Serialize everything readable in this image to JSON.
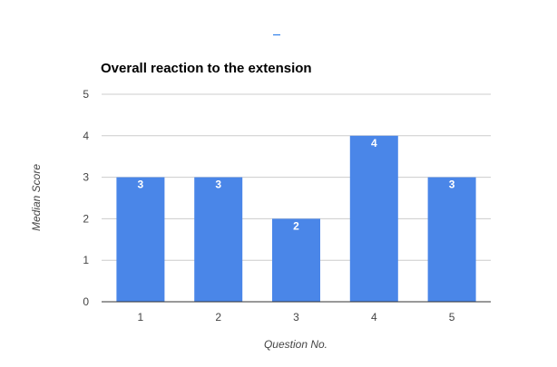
{
  "chart_data": {
    "type": "bar",
    "title": "Overall reaction to the extension",
    "xlabel": "Question No.",
    "ylabel": "Median Score",
    "categories": [
      "1",
      "2",
      "3",
      "4",
      "5"
    ],
    "values": [
      3,
      3,
      2,
      4,
      3
    ],
    "data_labels": [
      "3",
      "3",
      "2",
      "4",
      "3"
    ],
    "ylim": [
      0,
      5
    ],
    "yticks": [
      "0",
      "1",
      "2",
      "3",
      "4",
      "5"
    ],
    "grid": true,
    "legend": "none",
    "colors": {
      "bar": "#4a86e8",
      "grid": "#cccccc",
      "axis": "#333333",
      "text": "#444444",
      "title": "#000000",
      "data_label": "#ffffff"
    }
  }
}
